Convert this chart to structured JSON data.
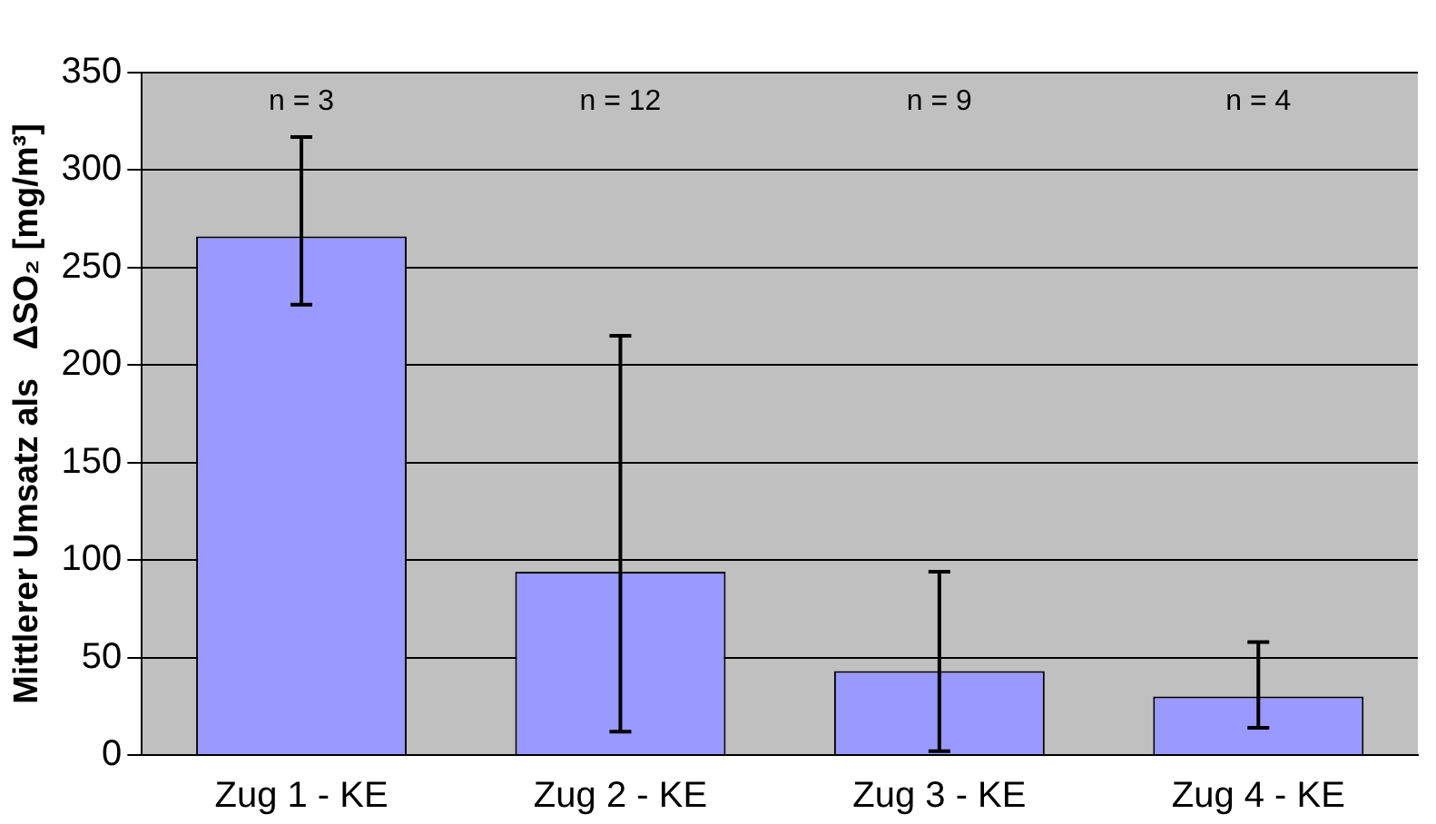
{
  "chart_data": {
    "type": "bar",
    "ylabel": "Mittlerer Umsatz als   ΔSO₂ [mg/m³]",
    "categories": [
      "Zug 1 - KE",
      "Zug 2 - KE",
      "Zug 3 - KE",
      "Zug 4 - KE"
    ],
    "values": [
      266,
      94,
      43,
      30
    ],
    "color": "#9999ff",
    "errors": [
      [
        231,
        317
      ],
      [
        12,
        215
      ],
      [
        2,
        94
      ],
      [
        14,
        58
      ]
    ],
    "ylim": [
      0,
      350
    ],
    "yticks": [
      0,
      50,
      100,
      150,
      200,
      250,
      300,
      350
    ],
    "grid": "y",
    "annotations": [
      "n = 3",
      "n = 12",
      "n = 9",
      "n = 4"
    ]
  }
}
